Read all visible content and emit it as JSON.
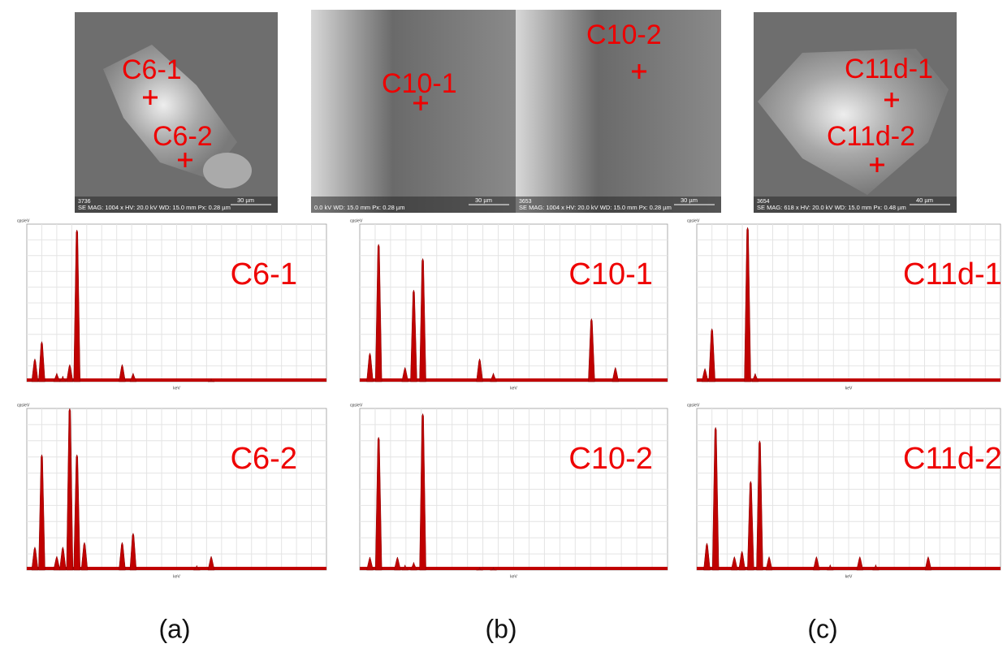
{
  "sem": [
    {
      "id": "3736",
      "info": "SE MAG: 1004 x HV: 20.0 kV WD: 15.0 mm Px: 0.28 µm",
      "scale": "30 µm",
      "points": [
        "C6-1",
        "C6-2"
      ]
    },
    {
      "info": "0.0 kV WD: 15.0 mm Px: 0.28 µm",
      "scale": "30 µm",
      "points": [
        "C10-1"
      ]
    },
    {
      "id": "3653",
      "info": "SE MAG: 1004 x HV: 20.0 kV WD: 15.0 mm Px: 0.28 µm",
      "scale": "30 µm",
      "points": [
        "C10-2"
      ]
    },
    {
      "id": "3654",
      "info": "SE MAG: 618 x HV: 20.0 kV WD: 15.0 mm Px: 0.48 µm",
      "scale": "40 µm",
      "points": [
        "C11d-1",
        "C11d-2"
      ]
    }
  ],
  "units": {
    "x": "keV",
    "y": "cps/eV"
  },
  "spectra": [
    {
      "label": "C6-1",
      "xlim": [
        0,
        10.4
      ],
      "ylim": [
        0,
        55
      ],
      "peak_kev": [
        0.28,
        0.52,
        1.04,
        1.25,
        1.49,
        1.74,
        3.31,
        3.69,
        6.4
      ],
      "peak_counts": [
        8,
        14,
        3,
        2,
        6,
        53,
        6,
        3,
        1
      ]
    },
    {
      "label": "C10-1",
      "xlim": [
        0,
        8.5
      ],
      "ylim": [
        0,
        5.5
      ],
      "peak_kev": [
        0.28,
        0.52,
        1.25,
        1.49,
        1.74,
        3.31,
        3.69,
        6.4,
        7.06
      ],
      "peak_counts": [
        1,
        4.8,
        0.5,
        3.2,
        4.3,
        0.8,
        0.3,
        2.2,
        0.5
      ]
    },
    {
      "label": "C11d-1",
      "xlim": [
        0,
        10.4
      ],
      "ylim": [
        0,
        95
      ],
      "peak_kev": [
        0.28,
        0.52,
        1.74,
        2.0
      ],
      "peak_counts": [
        8,
        32,
        93,
        5
      ]
    },
    {
      "label": "C6-2",
      "xlim": [
        0,
        10.4
      ],
      "ylim": [
        0,
        35
      ],
      "peak_kev": [
        0.28,
        0.52,
        1.04,
        1.25,
        1.49,
        1.74,
        2.0,
        3.31,
        3.69,
        5.9,
        6.4
      ],
      "peak_counts": [
        5,
        25,
        3,
        5,
        35,
        25,
        6,
        6,
        8,
        1,
        3
      ]
    },
    {
      "label": "C10-2",
      "xlim": [
        0,
        8.5
      ],
      "ylim": [
        0,
        62
      ],
      "peak_kev": [
        0.28,
        0.52,
        1.04,
        1.25,
        1.49,
        1.74,
        3.31,
        3.69
      ],
      "peak_counts": [
        5,
        51,
        5,
        2,
        3,
        60,
        1,
        1
      ]
    },
    {
      "label": "C11d-2",
      "xlim": [
        0,
        8.4
      ],
      "ylim": [
        0,
        60
      ],
      "peak_kev": [
        0.28,
        0.52,
        1.04,
        1.25,
        1.49,
        1.74,
        2.0,
        3.31,
        3.69,
        4.51,
        4.95,
        6.4
      ],
      "peak_counts": [
        10,
        53,
        5,
        7,
        33,
        48,
        5,
        5,
        2,
        5,
        2,
        5
      ]
    }
  ],
  "captions": [
    "(a)",
    "(b)",
    "(c)"
  ]
}
